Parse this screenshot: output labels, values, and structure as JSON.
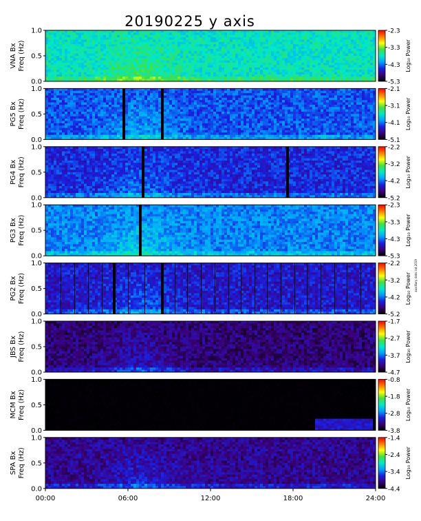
{
  "title": "20190225 y axis",
  "credit": "auxilliary data: lat 2019",
  "chart_data": {
    "type": "heatmap",
    "x_ticks": [
      "00:00",
      "06:00",
      "12:00",
      "18:00",
      "24:00"
    ],
    "x_range_hours": [
      0,
      24
    ],
    "y_ticks": [
      "0.0",
      "0.5",
      "1.0"
    ],
    "y_range_hz": [
      0,
      1.0
    ],
    "colorbar_label": "Log₁₀ Power",
    "colormap": [
      "#000000",
      "#3b007a",
      "#1a1fe0",
      "#00a0ff",
      "#00e8c8",
      "#40e040",
      "#ffff00",
      "#ff7a00",
      "#ff0000"
    ],
    "panels": [
      {
        "station": "VNA Bx",
        "ylabel": "Freq (Hz)",
        "cbar_ticks": [
          "-2.3",
          "-3.3",
          "-4.3",
          "-5.3"
        ],
        "background_level": 0.5,
        "dark_gaps_hours": [],
        "thin_gaps_hours": []
      },
      {
        "station": "PG5 Bx",
        "ylabel": "Freq (Hz)",
        "cbar_ticks": [
          "-2.1",
          "-3.1",
          "-4.1",
          "-5.1"
        ],
        "background_level": 0.3,
        "dark_gaps_hours": [
          5.7,
          8.5
        ],
        "thin_gaps_hours": []
      },
      {
        "station": "PG4 Bx",
        "ylabel": "Freq (Hz)",
        "cbar_ticks": [
          "-2.2",
          "-3.2",
          "-4.2",
          "-5.2"
        ],
        "background_level": 0.25,
        "dark_gaps_hours": [
          7.1,
          17.6
        ],
        "thin_gaps_hours": []
      },
      {
        "station": "PG3 Bx",
        "ylabel": "Freq (Hz)",
        "cbar_ticks": [
          "-2.3",
          "-3.3",
          "-4.3",
          "-5.3"
        ],
        "background_level": 0.35,
        "dark_gaps_hours": [
          6.9
        ],
        "thin_gaps_hours": []
      },
      {
        "station": "PG2 Bx",
        "ylabel": "Freq (Hz)",
        "cbar_ticks": [
          "-2.2",
          "-3.2",
          "-4.2",
          "-5.2"
        ],
        "background_level": 0.22,
        "dark_gaps_hours": [
          5.0,
          8.5
        ],
        "thin_gaps_hours": [
          1.1,
          2.1,
          3.1,
          4.1,
          6.0,
          7.2,
          9.4,
          10.3,
          11.3,
          12.3,
          13.3,
          14.2,
          15.2,
          16.1,
          17.1,
          18.1,
          19.0,
          20.0,
          21.0,
          21.9,
          22.9
        ]
      },
      {
        "station": "JBS Bx",
        "ylabel": "Freq (Hz)",
        "cbar_ticks": [
          "-1.7",
          "-2.7",
          "-3.7",
          "-4.7"
        ],
        "background_level": 0.12,
        "dark_gaps_hours": [],
        "thin_gaps_hours": []
      },
      {
        "station": "MCM Bx",
        "ylabel": "Freq (Hz)",
        "cbar_ticks": [
          "-0.8",
          "-1.8",
          "-2.8",
          "-3.8"
        ],
        "background_level": 0.0,
        "dark_gaps_hours": [],
        "thin_gaps_hours": []
      },
      {
        "station": "SPA Bx",
        "ylabel": "Freq (Hz)",
        "cbar_ticks": [
          "-1.4",
          "-2.4",
          "-3.4",
          "-4.4"
        ],
        "background_level": 0.15,
        "dark_gaps_hours": [],
        "thin_gaps_hours": []
      }
    ]
  }
}
